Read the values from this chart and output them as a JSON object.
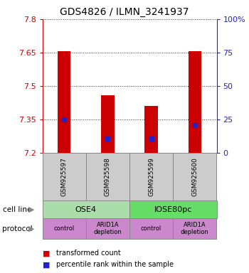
{
  "title": "GDS4826 / ILMN_3241937",
  "samples": [
    "GSM925597",
    "GSM925598",
    "GSM925599",
    "GSM925600"
  ],
  "bar_bottoms": [
    7.2,
    7.2,
    7.2,
    7.2
  ],
  "bar_tops": [
    7.655,
    7.46,
    7.41,
    7.655
  ],
  "blue_marks": [
    7.35,
    7.265,
    7.265,
    7.325
  ],
  "ylim": [
    7.2,
    7.8
  ],
  "yticks_left": [
    7.2,
    7.35,
    7.5,
    7.65,
    7.8
  ],
  "ytick_labels_left": [
    "7.2",
    "7.35",
    "7.5",
    "7.65",
    "7.8"
  ],
  "yticks_right": [
    0,
    25,
    50,
    75,
    100
  ],
  "ytick_labels_right": [
    "0",
    "25",
    "50",
    "75",
    "100%"
  ],
  "bar_color": "#cc0000",
  "blue_color": "#2222cc",
  "cell_line_ose4_color": "#aaddaa",
  "cell_line_iose_color": "#66dd66",
  "protocol_color": "#cc88cc",
  "sample_box_color": "#cccccc",
  "left_axis_color": "#cc0000",
  "right_axis_color": "#2222cc",
  "legend_red_label": "transformed count",
  "legend_blue_label": "percentile rank within the sample",
  "cell_line_row_label": "cell line",
  "protocol_row_label": "protocol",
  "protocol_labels": [
    "control",
    "ARID1A\ndepletion",
    "control",
    "ARID1A\ndepletion"
  ],
  "bar_width": 0.3
}
